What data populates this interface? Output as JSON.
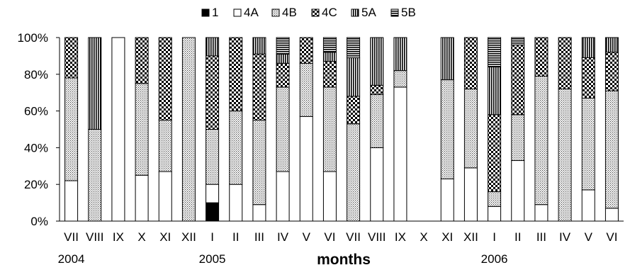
{
  "chart_data": {
    "type": "bar",
    "stacked": true,
    "percent_stacked": true,
    "categories": [
      "VII",
      "VIII",
      "IX",
      "X",
      "XI",
      "XII",
      "I",
      "II",
      "III",
      "IV",
      "V",
      "VI",
      "VII",
      "VIII",
      "IX",
      "X",
      "XI",
      "XII",
      "I",
      "II",
      "III",
      "IV",
      "V",
      "VI"
    ],
    "year_labels": [
      {
        "label": "2004",
        "category_index": 0
      },
      {
        "label": "2005",
        "category_index": 6
      },
      {
        "label": "2006",
        "category_index": 18
      }
    ],
    "xlabel": "months",
    "ylabel": "",
    "title": "",
    "ylim": [
      0,
      100
    ],
    "y_ticks": [
      "0%",
      "20%",
      "40%",
      "60%",
      "80%",
      "100%"
    ],
    "grid": false,
    "legend_position": "top",
    "series": [
      {
        "name": "1",
        "pattern": "solid",
        "values": [
          0,
          0,
          0,
          0,
          0,
          0,
          10,
          0,
          0,
          0,
          0,
          0,
          0,
          0,
          0,
          0,
          0,
          0,
          0,
          0,
          0,
          0,
          0,
          0
        ]
      },
      {
        "name": "4A",
        "pattern": "empty",
        "values": [
          22,
          0,
          100,
          25,
          27,
          0,
          10,
          20,
          9,
          27,
          57,
          27,
          0,
          40,
          73,
          0,
          23,
          29,
          8,
          33,
          9,
          0,
          17,
          7
        ]
      },
      {
        "name": "4B",
        "pattern": "dots",
        "values": [
          56,
          50,
          0,
          50,
          28,
          100,
          30,
          40,
          46,
          46,
          29,
          46,
          53,
          29,
          9,
          0,
          54,
          43,
          8,
          25,
          70,
          72,
          50,
          64
        ]
      },
      {
        "name": "4C",
        "pattern": "checker",
        "values": [
          22,
          0,
          0,
          25,
          45,
          0,
          40,
          40,
          36,
          13,
          14,
          14,
          15,
          5,
          0,
          0,
          0,
          28,
          42,
          38,
          21,
          28,
          22,
          21
        ]
      },
      {
        "name": "5A",
        "pattern": "vertical",
        "values": [
          0,
          50,
          0,
          0,
          0,
          0,
          10,
          0,
          9,
          5,
          0,
          5,
          21,
          26,
          18,
          0,
          23,
          0,
          26,
          0,
          0,
          0,
          11,
          8
        ]
      },
      {
        "name": "5B",
        "pattern": "horizontal",
        "values": [
          0,
          0,
          0,
          0,
          0,
          0,
          0,
          0,
          0,
          9,
          0,
          8,
          11,
          0,
          0,
          0,
          0,
          0,
          16,
          4,
          0,
          0,
          0,
          0
        ]
      }
    ]
  }
}
